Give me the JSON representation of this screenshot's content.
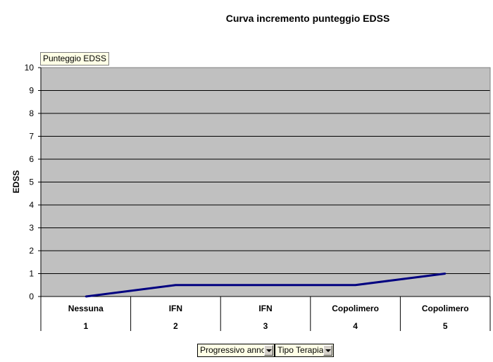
{
  "chart_data": {
    "type": "line",
    "title": "Curva incremento punteggio EDSS",
    "ylabel": "EDSS",
    "ylim": [
      0,
      10
    ],
    "yticks": [
      0,
      1,
      2,
      3,
      4,
      5,
      6,
      7,
      8,
      9,
      10
    ],
    "categories": [
      {
        "label": "Nessuna",
        "sub": "1"
      },
      {
        "label": "IFN",
        "sub": "2"
      },
      {
        "label": "IFN",
        "sub": "3"
      },
      {
        "label": "Copolimero",
        "sub": "4"
      },
      {
        "label": "Copolimero",
        "sub": "5"
      }
    ],
    "series": [
      {
        "values": [
          0,
          0.5,
          0.5,
          0.5,
          1
        ],
        "color": "#000080"
      }
    ],
    "grid": true,
    "plot_background": "#c0c0c0"
  },
  "data_field_label": "Punteggio EDSS",
  "field_buttons": [
    {
      "label": "Progressivo anno"
    },
    {
      "label": "Tipo Terapia"
    }
  ]
}
